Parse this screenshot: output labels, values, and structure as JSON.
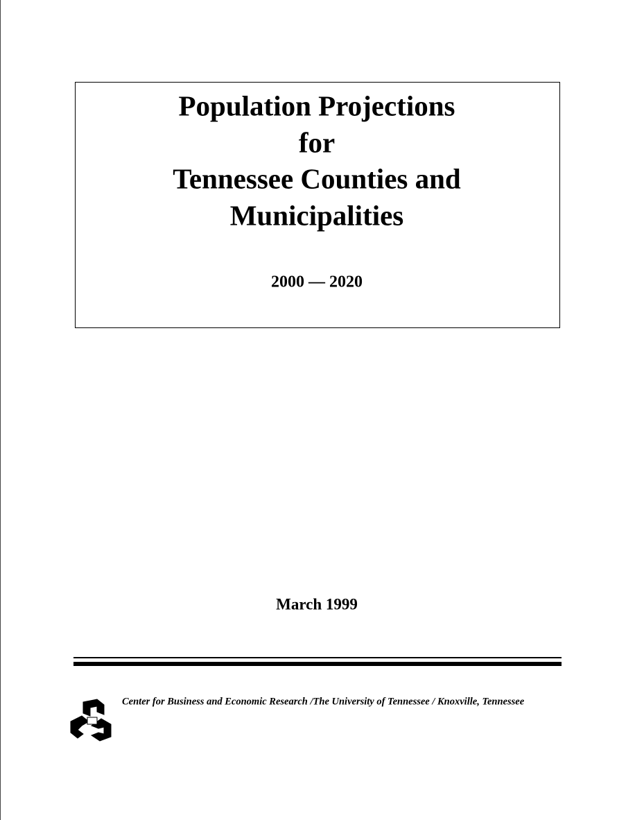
{
  "cover": {
    "title_lines": [
      "Population Projections",
      "for",
      "Tennessee Counties and",
      "Municipalities"
    ],
    "years": "2000 — 2020",
    "date": "March 1999",
    "publisher": "Center for Business and Economic Research /The University of Tennessee / Knoxville, Tennessee"
  }
}
